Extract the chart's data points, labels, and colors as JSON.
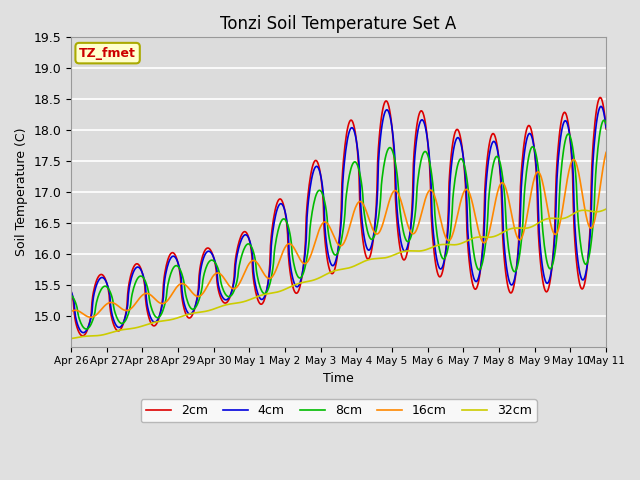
{
  "title": "Tonzi Soil Temperature Set A",
  "xlabel": "Time",
  "ylabel": "Soil Temperature (C)",
  "annotation": "TZ_fmet",
  "ylim": [
    14.5,
    19.5
  ],
  "background_color": "#e0e0e0",
  "plot_bg_color": "#dcdcdc",
  "grid_color": "#ffffff",
  "legend_labels": [
    "2cm",
    "4cm",
    "8cm",
    "16cm",
    "32cm"
  ],
  "line_colors": [
    "#dd0000",
    "#0000dd",
    "#00bb00",
    "#ff8800",
    "#cccc00"
  ],
  "line_width": 1.2,
  "x_tick_labels": [
    "Apr 26",
    "Apr 27",
    "Apr 28",
    "Apr 29",
    "Apr 30",
    "May 1",
    "May 2",
    "May 3",
    "May 4",
    "May 5",
    "May 6",
    "May 7",
    "May 8",
    "May 9",
    "May 10",
    "May 11"
  ],
  "annotation_bg": "#ffffcc",
  "annotation_color": "#cc0000",
  "annotation_border": "#aaaa00",
  "figsize": [
    6.4,
    4.8
  ],
  "dpi": 100
}
